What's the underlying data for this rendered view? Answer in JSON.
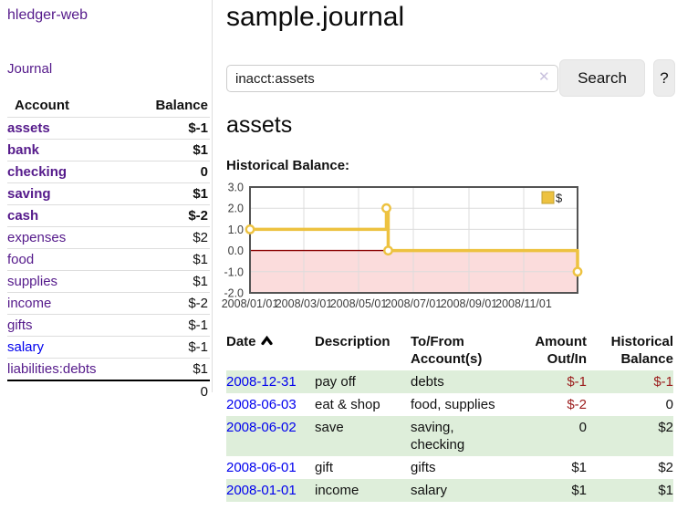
{
  "app": {
    "brand": "hledger-web",
    "nav_journal": "Journal"
  },
  "sidebar": {
    "header_account": "Account",
    "header_balance": "Balance",
    "accounts": [
      {
        "name": "assets",
        "balance": "$-1",
        "indent": 1,
        "bold": true,
        "balance_style": "neg-strong",
        "link_style": "purple"
      },
      {
        "name": "bank",
        "balance": "$1",
        "indent": 2,
        "bold": true,
        "balance_style": "pos",
        "link_style": "purple"
      },
      {
        "name": "checking",
        "balance": "0",
        "indent": 3,
        "bold": true,
        "balance_style": "pos",
        "link_style": "purple"
      },
      {
        "name": "saving",
        "balance": "$1",
        "indent": 3,
        "bold": true,
        "balance_style": "pos",
        "link_style": "purple"
      },
      {
        "name": "cash",
        "balance": "$-2",
        "indent": 2,
        "bold": true,
        "balance_style": "neg-strong",
        "link_style": "purple"
      },
      {
        "name": "expenses",
        "balance": "$2",
        "indent": 1,
        "bold": false,
        "balance_style": "pos",
        "link_style": "purple"
      },
      {
        "name": "food",
        "balance": "$1",
        "indent": 2,
        "bold": false,
        "balance_style": "pos",
        "link_style": "purple"
      },
      {
        "name": "supplies",
        "balance": "$1",
        "indent": 2,
        "bold": false,
        "balance_style": "pos",
        "link_style": "purple"
      },
      {
        "name": "income",
        "balance": "$-2",
        "indent": 1,
        "bold": false,
        "balance_style": "neg-soft",
        "link_style": "purple"
      },
      {
        "name": "gifts",
        "balance": "$-1",
        "indent": 2,
        "bold": false,
        "balance_style": "neg-soft",
        "link_style": "purple"
      },
      {
        "name": "salary",
        "balance": "$-1",
        "indent": 2,
        "bold": false,
        "balance_style": "neg-soft",
        "link_style": "blue"
      },
      {
        "name": "liabilities:debts",
        "balance": "$1",
        "indent": 1,
        "bold": false,
        "balance_style": "pos",
        "link_style": "purple"
      }
    ],
    "total": "0"
  },
  "main": {
    "title": "sample.journal",
    "account_title": "assets",
    "chart_label": "Historical Balance:"
  },
  "search": {
    "value": "inacct:assets",
    "clear_icon": "✕",
    "search_label": "Search",
    "help_label": "?"
  },
  "chart_data": {
    "type": "line",
    "step": true,
    "title": "Historical Balance:",
    "series": [
      {
        "name": "$",
        "color": "#edc240",
        "points": [
          {
            "date": "2008-01-01",
            "value": 1
          },
          {
            "date": "2008-06-01",
            "value": 2
          },
          {
            "date": "2008-06-03",
            "value": 0
          },
          {
            "date": "2008-12-31",
            "value": -1
          }
        ]
      }
    ],
    "ylim": [
      -2,
      3
    ],
    "y_ticks": [
      "3.0",
      "2.0",
      "1.0",
      "0.0",
      "-1.0",
      "-2.0"
    ],
    "x_ticks": [
      "2008/01/01",
      "2008/03/01",
      "2008/05/01",
      "2008/07/01",
      "2008/09/01",
      "2008/11/01"
    ],
    "legend": {
      "label": "$",
      "position": "top-right"
    },
    "grid": true,
    "negative_region_fill": "#fbdcdc",
    "zero_line_color": "#8b0000",
    "border_color": "#545454",
    "grid_color": "#dcdcdc",
    "tick_color": "#3c3c3c"
  },
  "register": {
    "headers": [
      {
        "l1": "Date",
        "l2": "",
        "sort": "asc"
      },
      {
        "l1": "Description",
        "l2": ""
      },
      {
        "l1": "To/From",
        "l2": "Account(s)"
      },
      {
        "l1": "Amount",
        "l2": "Out/In"
      },
      {
        "l1": "Historical",
        "l2": "Balance"
      }
    ],
    "rows": [
      {
        "date": "2008-12-31",
        "description": "pay off",
        "accounts": "debts",
        "accounts2": "",
        "amount": "$-1",
        "balance": "$-1",
        "amount_neg": true,
        "balance_neg": true,
        "shaded": true
      },
      {
        "date": "2008-06-03",
        "description": "eat & shop",
        "accounts": "food, supplies",
        "accounts2": "",
        "amount": "$-2",
        "balance": "0",
        "amount_neg": true,
        "balance_neg": false,
        "shaded": false
      },
      {
        "date": "2008-06-02",
        "description": "save",
        "accounts": "saving,",
        "accounts2": "checking",
        "amount": "0",
        "balance": "$2",
        "amount_neg": false,
        "balance_neg": false,
        "shaded": true
      },
      {
        "date": "2008-06-01",
        "description": "gift",
        "accounts": "gifts",
        "accounts2": "",
        "amount": "$1",
        "balance": "$2",
        "amount_neg": false,
        "balance_neg": false,
        "shaded": false
      },
      {
        "date": "2008-01-01",
        "description": "income",
        "accounts": "salary",
        "accounts2": "",
        "amount": "$1",
        "balance": "$1",
        "amount_neg": false,
        "balance_neg": false,
        "shaded": true
      }
    ]
  },
  "colors": {
    "link_purple": "#551a8b",
    "link_blue": "#0000ee",
    "negative_strong": "#9b1c1c",
    "negative_soft": "#c47878",
    "row_shade_green": "#deeeda",
    "series_yellow": "#edc240",
    "negative_region_pink": "#fbdcdc"
  }
}
